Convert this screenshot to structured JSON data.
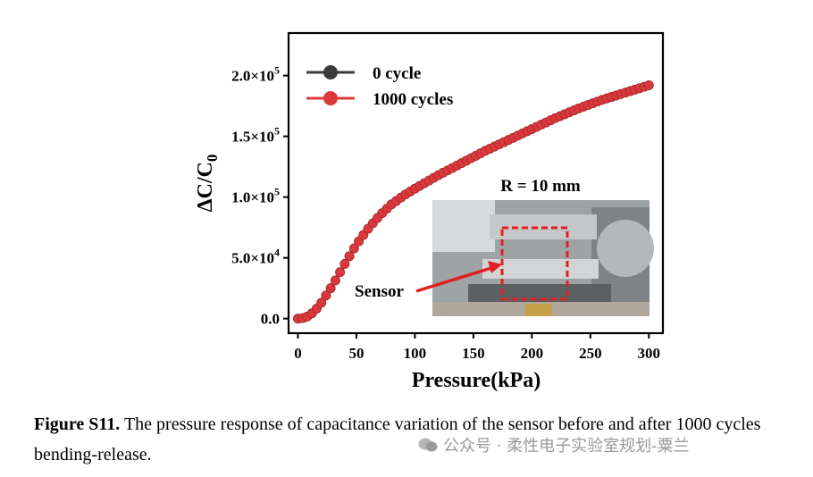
{
  "chart_data": {
    "type": "line",
    "ylabel": "ΔC/C0",
    "xlabel": "Pressure(kPa)",
    "xlim": [
      -8,
      312
    ],
    "ylim": [
      -12000,
      235000
    ],
    "x_ticks": [
      0,
      50,
      100,
      150,
      200,
      250,
      300
    ],
    "y_ticks": [
      {
        "value": 0,
        "mantissa": "0.0",
        "exp": ""
      },
      {
        "value": 50000,
        "mantissa": "5.0×10",
        "exp": "4"
      },
      {
        "value": 100000,
        "mantissa": "1.0×10",
        "exp": "5"
      },
      {
        "value": 150000,
        "mantissa": "1.5×10",
        "exp": "5"
      },
      {
        "value": 200000,
        "mantissa": "2.0×10",
        "exp": "5"
      }
    ],
    "legend_position": "top-left",
    "series": [
      {
        "name": "0 cycle",
        "color": "#3a3a3a",
        "x": [
          0,
          5,
          10,
          15,
          20,
          30,
          40,
          50,
          60,
          70,
          80,
          90,
          100,
          120,
          140,
          160,
          180,
          200,
          220,
          240,
          260,
          280,
          300
        ],
        "y": [
          0,
          500,
          2500,
          7000,
          13000,
          28000,
          45000,
          61000,
          74000,
          85000,
          94000,
          101000,
          107000,
          118000,
          128000,
          138000,
          147000,
          156000,
          165000,
          173000,
          180000,
          186000,
          192000
        ]
      },
      {
        "name": "1000 cycles",
        "color": "#d9393c",
        "x": [
          0,
          5,
          10,
          15,
          20,
          30,
          40,
          50,
          60,
          70,
          80,
          90,
          100,
          120,
          140,
          160,
          180,
          200,
          220,
          240,
          260,
          280,
          300
        ],
        "y": [
          0,
          500,
          2500,
          7000,
          13000,
          28000,
          45000,
          61000,
          74000,
          85000,
          94000,
          101000,
          107000,
          118000,
          128000,
          138000,
          147000,
          156000,
          165000,
          173000,
          180000,
          186000,
          192000
        ]
      }
    ]
  },
  "inset": {
    "title": "R = 10 mm",
    "sensor_label": "Sensor"
  },
  "caption": {
    "label": "Figure S11.",
    "text": " The pressure response of capacitance variation of the sensor before and after 1000 cycles bending-release."
  },
  "watermark": {
    "text": "公众号 · 柔性电子实验室规划-粟兰"
  }
}
